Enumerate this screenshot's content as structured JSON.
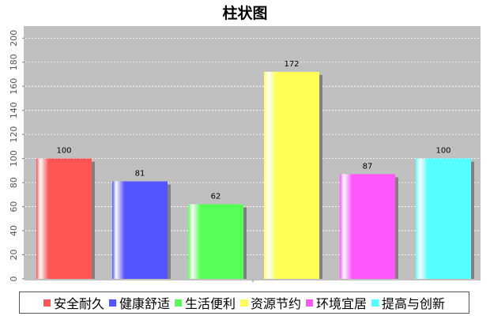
{
  "chart_data": {
    "type": "bar",
    "title": "柱状图",
    "xlabel": "",
    "ylabel": "",
    "categories": [
      "安全耐久",
      "健康舒适",
      "生活便利",
      "资源节约",
      "环境宜居",
      "提高与创新"
    ],
    "values": [
      100,
      81,
      62,
      172,
      87,
      100
    ],
    "value_labels": [
      "100",
      "81",
      "62",
      "172",
      "87",
      "100"
    ],
    "colors": [
      "#ff5555",
      "#5555ff",
      "#55ff55",
      "#ffff55",
      "#ff55ff",
      "#55ffff"
    ],
    "ylim": [
      0,
      210
    ],
    "yticks": [
      "0",
      "20",
      "40",
      "60",
      "80",
      "100",
      "120",
      "140",
      "160",
      "180",
      "200"
    ],
    "grid": true,
    "legend_position": "bottom",
    "plot_background": "#c0c0c0"
  }
}
